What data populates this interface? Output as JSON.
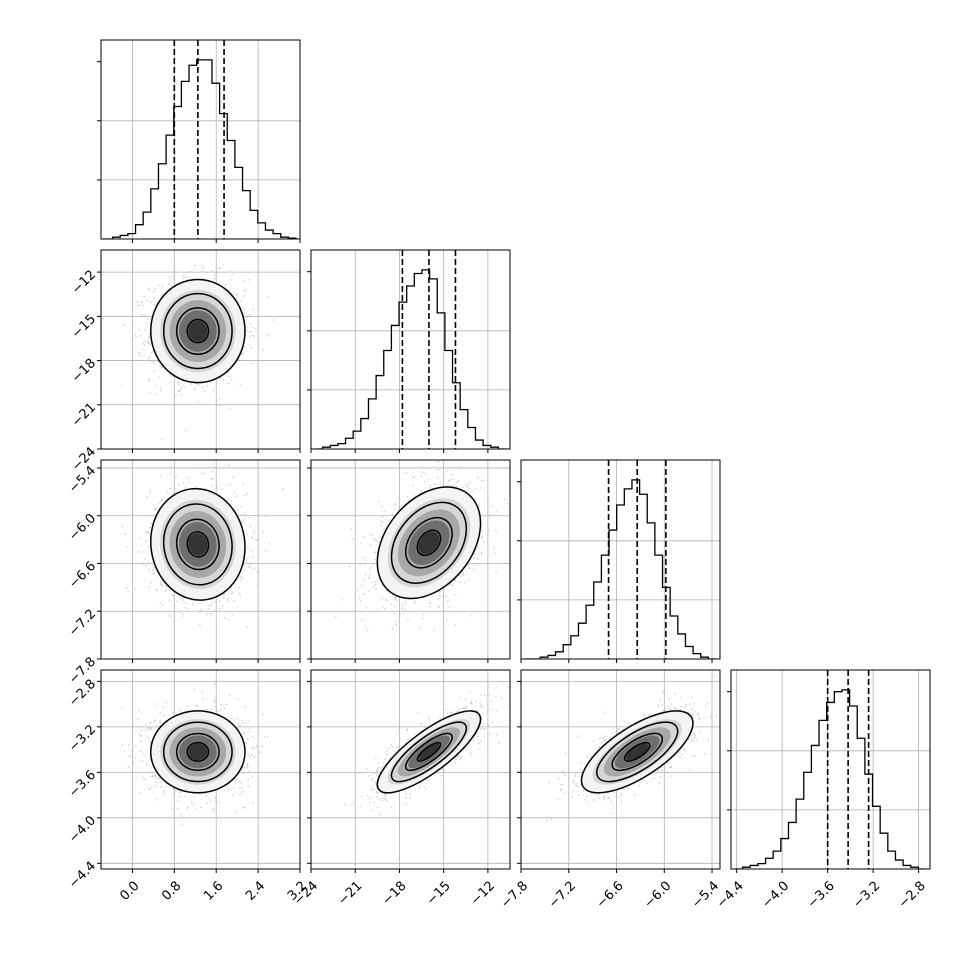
{
  "chart_data": {
    "type": "corner",
    "grid": true,
    "parameters": [
      {
        "range": [
          -0.6,
          3.2
        ],
        "ticks": [
          "0.0",
          "0.8",
          "1.6",
          "2.4",
          "3.2"
        ],
        "tick_values": [
          0.0,
          0.8,
          1.6,
          2.4,
          3.2
        ],
        "quantiles": [
          0.8,
          1.25,
          1.75
        ],
        "hist_bins": [
          0.0,
          0.01,
          0.02,
          0.03,
          0.08,
          0.15,
          0.28,
          0.42,
          0.58,
          0.74,
          0.88,
          0.97,
          1.0,
          1.0,
          0.87,
          0.7,
          0.55,
          0.4,
          0.27,
          0.16,
          0.09,
          0.05,
          0.03,
          0.01,
          0.005
        ]
      },
      {
        "range": [
          -24,
          -10.5
        ],
        "ticks": [
          "-24",
          "-21",
          "-18",
          "-15",
          "-12"
        ],
        "tick_values": [
          -24,
          -21,
          -18,
          -15,
          -12
        ],
        "quantiles": [
          -17.8,
          -16.0,
          -14.2
        ],
        "hist_bins": [
          0.0,
          0.01,
          0.02,
          0.03,
          0.06,
          0.1,
          0.17,
          0.28,
          0.41,
          0.55,
          0.69,
          0.82,
          0.91,
          0.98,
          1.0,
          0.95,
          0.76,
          0.55,
          0.37,
          0.22,
          0.12,
          0.05,
          0.02,
          0.01,
          0.0
        ]
      },
      {
        "range": [
          -7.8,
          -5.3
        ],
        "ticks": [
          "-7.8",
          "-7.2",
          "-6.6",
          "-6.0",
          "-5.4"
        ],
        "tick_values": [
          -7.8,
          -7.2,
          -6.6,
          -6.0,
          -5.4
        ],
        "quantiles": [
          -6.7,
          -6.34,
          -5.98
        ],
        "hist_bins": [
          0.0,
          0.0,
          0.01,
          0.02,
          0.04,
          0.08,
          0.13,
          0.2,
          0.3,
          0.43,
          0.58,
          0.72,
          0.86,
          0.95,
          1.0,
          0.92,
          0.76,
          0.58,
          0.4,
          0.24,
          0.14,
          0.07,
          0.03,
          0.01,
          0.0
        ]
      },
      {
        "range": [
          -4.45,
          -2.7
        ],
        "ticks": [
          "-4.4",
          "-4.0",
          "-3.6",
          "-3.2",
          "-2.8"
        ],
        "tick_values": [
          -4.4,
          -4.0,
          -3.6,
          -3.2,
          -2.8
        ],
        "quantiles": [
          -3.6,
          -3.42,
          -3.24
        ],
        "hist_bins": [
          0.0,
          0.01,
          0.02,
          0.03,
          0.06,
          0.1,
          0.17,
          0.26,
          0.39,
          0.54,
          0.69,
          0.83,
          0.93,
          0.99,
          1.0,
          0.91,
          0.73,
          0.53,
          0.35,
          0.2,
          0.1,
          0.05,
          0.02,
          0.01,
          0.0
        ]
      }
    ],
    "pairs": [
      {
        "x": 0,
        "y": 1,
        "center": [
          1.25,
          -16.0
        ],
        "sigma": [
          0.45,
          1.75
        ],
        "corr": 0.0
      },
      {
        "x": 0,
        "y": 2,
        "center": [
          1.25,
          -6.36
        ],
        "sigma": [
          0.45,
          0.35
        ],
        "corr": -0.05
      },
      {
        "x": 1,
        "y": 2,
        "center": [
          -16.0,
          -6.34
        ],
        "sigma": [
          1.75,
          0.35
        ],
        "corr": 0.35
      },
      {
        "x": 0,
        "y": 3,
        "center": [
          1.25,
          -3.42
        ],
        "sigma": [
          0.45,
          0.18
        ],
        "corr": 0.0
      },
      {
        "x": 1,
        "y": 3,
        "center": [
          -16.0,
          -3.42
        ],
        "sigma": [
          1.75,
          0.18
        ],
        "corr": 0.8
      },
      {
        "x": 2,
        "y": 3,
        "center": [
          -6.34,
          -3.42
        ],
        "sigma": [
          0.35,
          0.18
        ],
        "corr": 0.7
      }
    ],
    "colors": {
      "line": "#000000",
      "scatter": "#b0b0b0",
      "density_dark": "#333333",
      "grid": "#b0b0b0"
    }
  }
}
